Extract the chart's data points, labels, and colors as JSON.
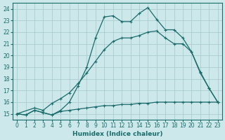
{
  "xlabel": "Humidex (Indice chaleur)",
  "ylabel": "",
  "bg_color": "#cce8ea",
  "grid_color": "#aacdd0",
  "line_color": "#1a6b6b",
  "xlim_min": -0.5,
  "xlim_max": 23.5,
  "ylim_min": 14.5,
  "ylim_max": 24.5,
  "xticks": [
    0,
    1,
    2,
    3,
    4,
    5,
    6,
    7,
    8,
    9,
    10,
    11,
    12,
    13,
    14,
    15,
    16,
    17,
    18,
    19,
    20,
    21,
    22,
    23
  ],
  "yticks": [
    15,
    16,
    17,
    18,
    19,
    20,
    21,
    22,
    23,
    24
  ],
  "series1_x": [
    0,
    1,
    2,
    3,
    4,
    5,
    6,
    7,
    8,
    9,
    10,
    11,
    12,
    13,
    14,
    15,
    16,
    17,
    18,
    19,
    20,
    21,
    22,
    23
  ],
  "series1_y": [
    15.0,
    14.9,
    15.3,
    15.1,
    14.9,
    15.2,
    15.3,
    15.4,
    15.5,
    15.6,
    15.7,
    15.7,
    15.8,
    15.8,
    15.9,
    15.9,
    16.0,
    16.0,
    16.0,
    16.0,
    16.0,
    16.0,
    16.0,
    16.0
  ],
  "series2_x": [
    0,
    2,
    3,
    4,
    5,
    6,
    7,
    8,
    9,
    10,
    11,
    12,
    13,
    14,
    15,
    16,
    17,
    18,
    19,
    20,
    21,
    22,
    23
  ],
  "series2_y": [
    15.0,
    15.5,
    15.3,
    15.9,
    16.3,
    16.8,
    17.6,
    18.5,
    19.5,
    20.5,
    21.2,
    21.5,
    21.5,
    21.7,
    22.0,
    22.1,
    21.5,
    21.0,
    21.0,
    20.3,
    18.5,
    17.2,
    16.0
  ],
  "series3_x": [
    0,
    1,
    2,
    3,
    4,
    5,
    6,
    7,
    8,
    9,
    10,
    11,
    12,
    13,
    14,
    15,
    16,
    17,
    18,
    19,
    20,
    21,
    22,
    23
  ],
  "series3_y": [
    15.0,
    14.9,
    15.3,
    15.1,
    14.9,
    15.3,
    16.0,
    17.4,
    19.0,
    21.5,
    23.3,
    23.4,
    22.9,
    22.9,
    23.6,
    24.1,
    23.1,
    22.2,
    22.2,
    21.5,
    20.3,
    18.6,
    17.2,
    16.0
  ],
  "tick_fontsize": 5.5,
  "xlabel_fontsize": 6.5
}
